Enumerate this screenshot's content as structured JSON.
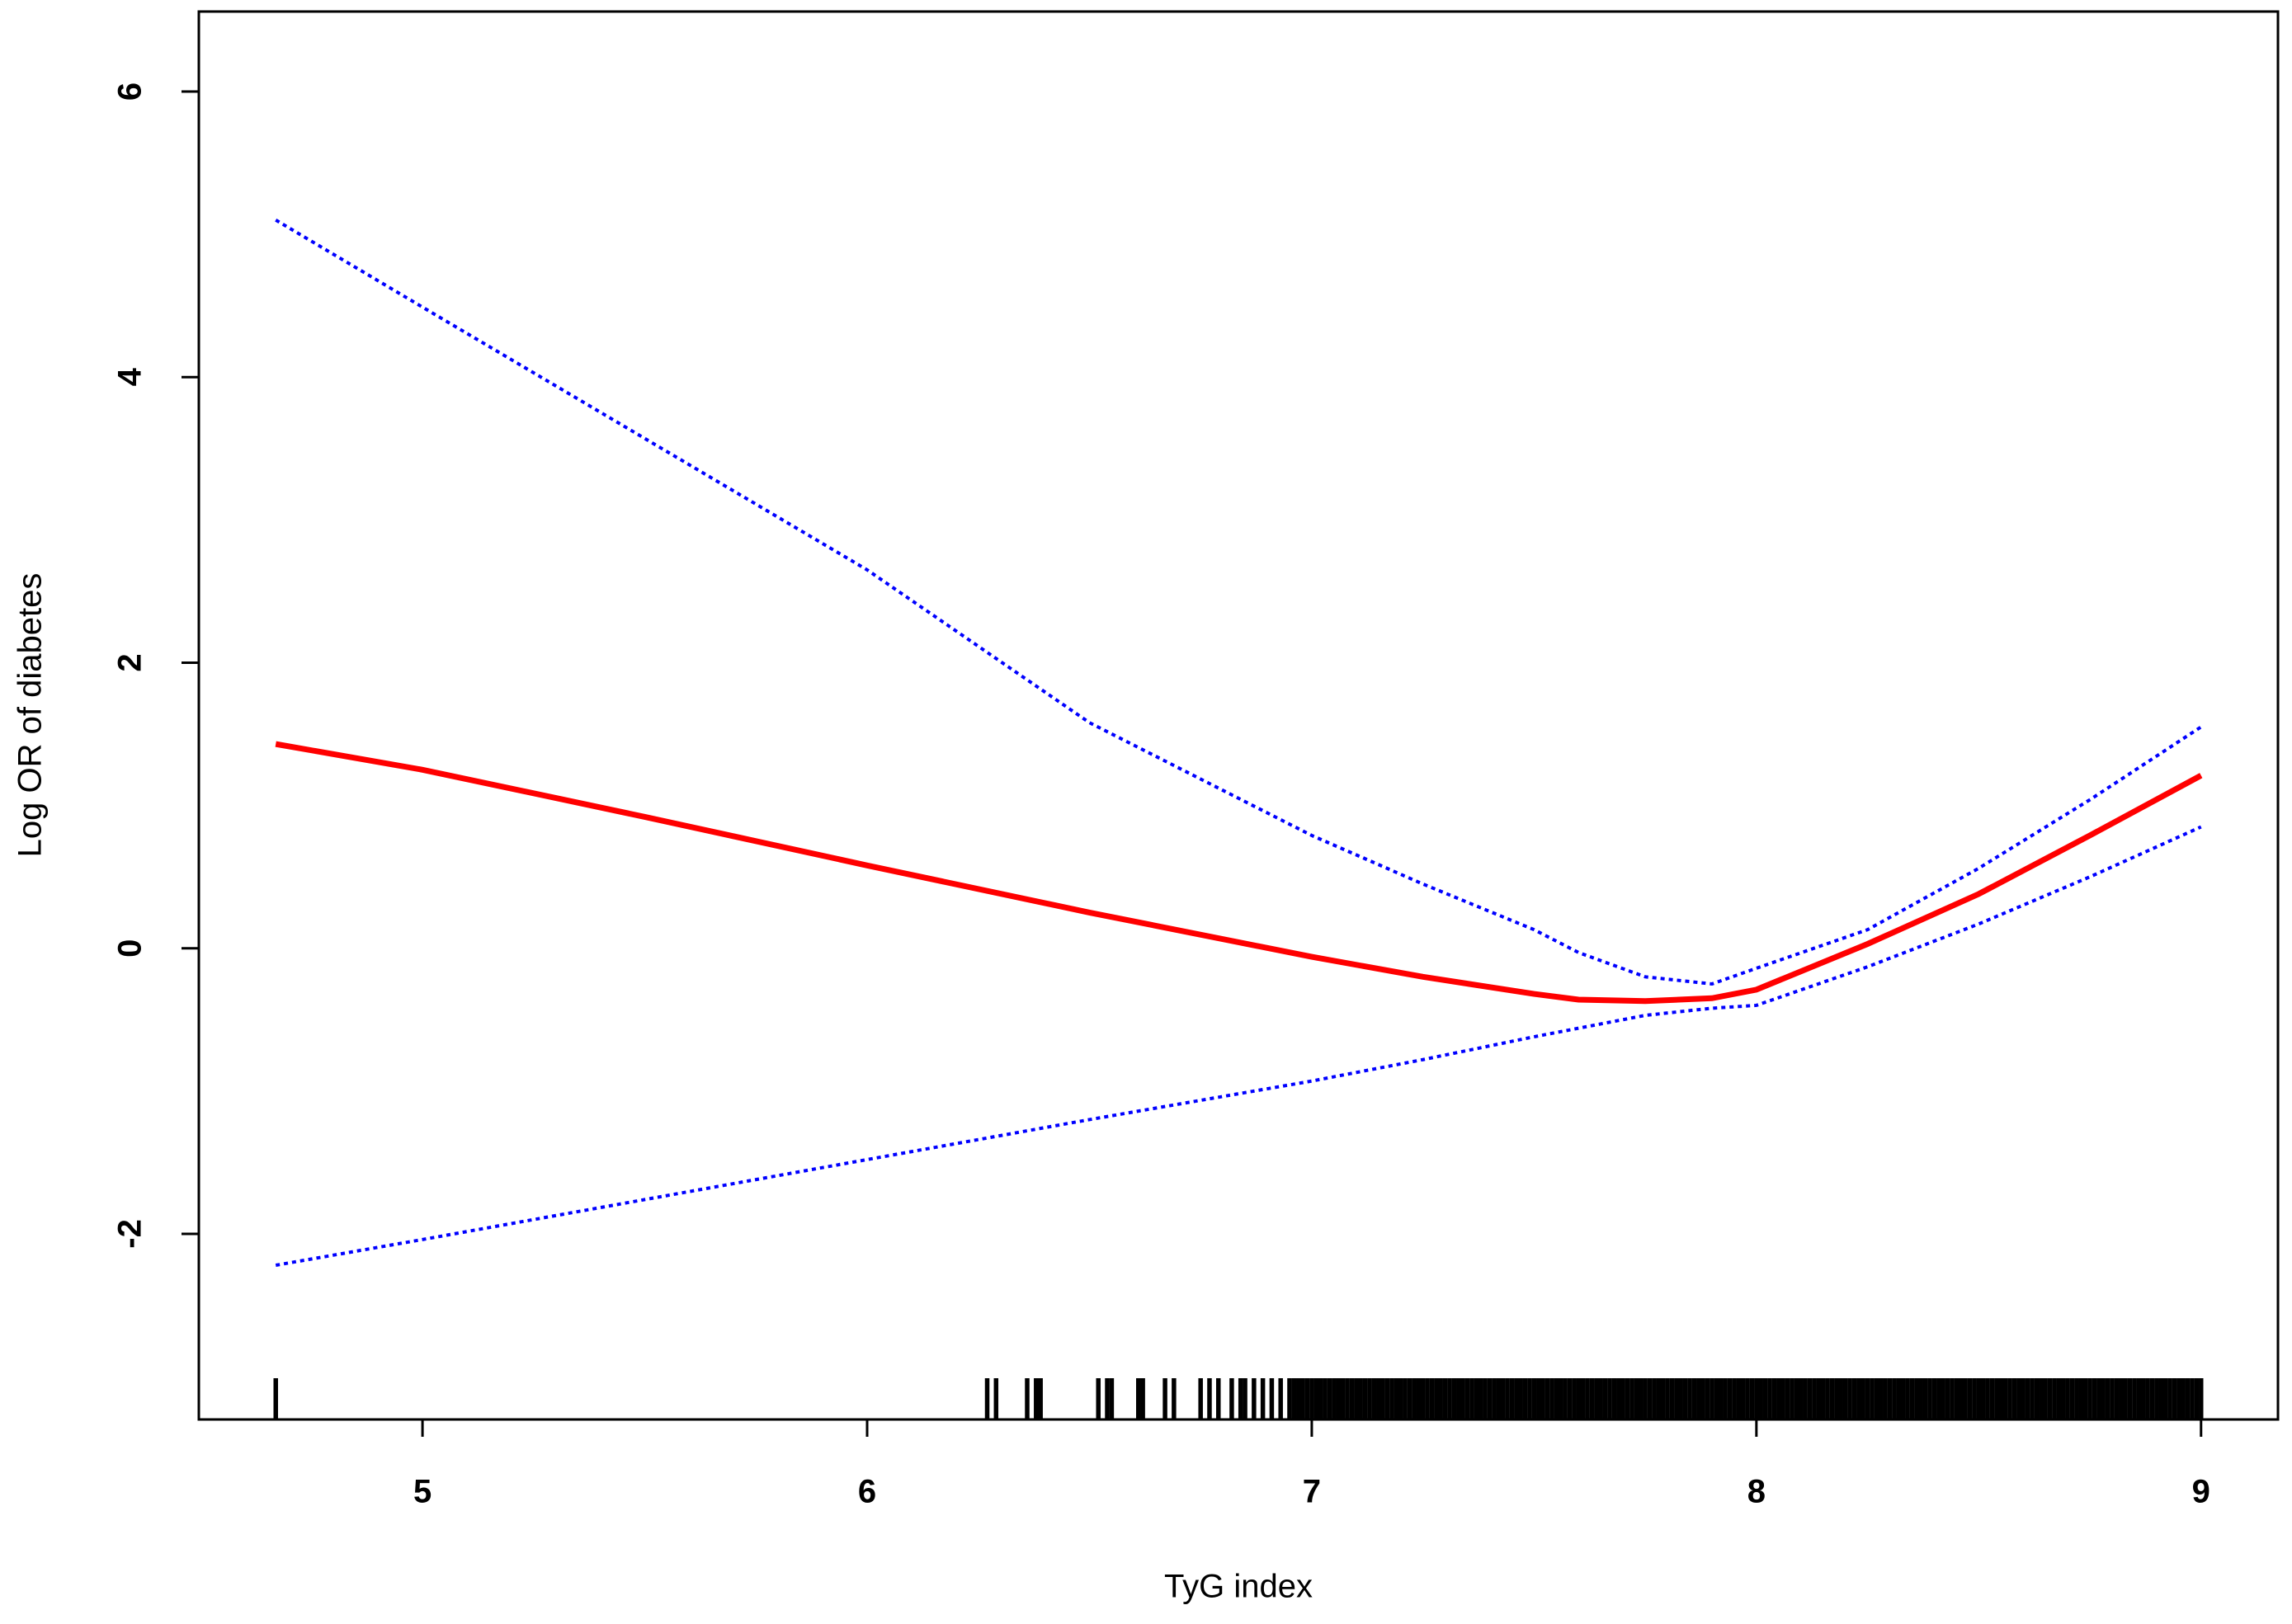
{
  "chart_data": {
    "type": "line",
    "xlabel": "TyG index",
    "ylabel": "Log OR of diabetes",
    "x": [
      4.67,
      5,
      5.5,
      6,
      6.5,
      7,
      7.25,
      7.5,
      7.6,
      7.75,
      7.9,
      8,
      8.25,
      8.5,
      8.75,
      9
    ],
    "series": [
      {
        "color": "#ff0000",
        "line_style": "solid",
        "values": [
          1.43,
          1.25,
          0.92,
          0.58,
          0.25,
          -0.06,
          -0.2,
          -0.32,
          -0.36,
          -0.37,
          -0.35,
          -0.29,
          0.03,
          0.38,
          0.79,
          1.21
        ]
      },
      {
        "color": "#0000ff",
        "line_style": "dotted",
        "values": [
          5.1,
          4.49,
          3.57,
          2.65,
          1.58,
          0.79,
          0.45,
          0.13,
          -0.03,
          -0.2,
          -0.25,
          -0.14,
          0.13,
          0.56,
          1.04,
          1.55
        ]
      },
      {
        "color": "#0000ff",
        "line_style": "dotted",
        "values": [
          -2.22,
          -2.04,
          -1.76,
          -1.48,
          -1.2,
          -0.93,
          -0.78,
          -0.62,
          -0.56,
          -0.47,
          -0.42,
          -0.4,
          -0.13,
          0.17,
          0.5,
          0.85
        ]
      }
    ],
    "rug": [
      4.67,
      6.27,
      6.29,
      6.36,
      6.38,
      6.39,
      6.52,
      6.54,
      6.55,
      6.61,
      6.62,
      6.67,
      6.69,
      6.75,
      6.77,
      6.79,
      6.82,
      6.84,
      6.85,
      6.87,
      6.89,
      6.91,
      6.93,
      6.95,
      6.96,
      6.97,
      6.98,
      6.99,
      7,
      7.01,
      7.02,
      7.03,
      7.04,
      7.05,
      7.06,
      7.07,
      7.08,
      7.09,
      7.1,
      7.11,
      7.12,
      7.13,
      7.14,
      7.15,
      7.16,
      7.17,
      7.18,
      7.19,
      7.2,
      7.21,
      7.22,
      7.23,
      7.24,
      7.25,
      7.26,
      7.27,
      7.28,
      7.29,
      7.3,
      7.31,
      7.32,
      7.33,
      7.34,
      7.35,
      7.36,
      7.37,
      7.38,
      7.39,
      7.4,
      7.41,
      7.42,
      7.43,
      7.44,
      7.45,
      7.46,
      7.47,
      7.48,
      7.49,
      7.5,
      7.51,
      7.52,
      7.53,
      7.54,
      7.55,
      7.56,
      7.57,
      7.58,
      7.59,
      7.6,
      7.61,
      7.62,
      7.63,
      7.64,
      7.65,
      7.66,
      7.67,
      7.68,
      7.69,
      7.7,
      7.71,
      7.72,
      7.73,
      7.74,
      7.75,
      7.76,
      7.77,
      7.78,
      7.79,
      7.8,
      7.81,
      7.82,
      7.83,
      7.84,
      7.85,
      7.86,
      7.87,
      7.88,
      7.89,
      7.9,
      7.91,
      7.92,
      7.93,
      7.94,
      7.95,
      7.96,
      7.97,
      7.98,
      7.99,
      8,
      8.01,
      8.02,
      8.03,
      8.04,
      8.05,
      8.06,
      8.07,
      8.08,
      8.09,
      8.1,
      8.11,
      8.12,
      8.13,
      8.14,
      8.15,
      8.16,
      8.17,
      8.18,
      8.19,
      8.2,
      8.21,
      8.22,
      8.23,
      8.24,
      8.25,
      8.26,
      8.27,
      8.28,
      8.29,
      8.3,
      8.31,
      8.32,
      8.33,
      8.34,
      8.35,
      8.36,
      8.37,
      8.38,
      8.39,
      8.4,
      8.41,
      8.42,
      8.43,
      8.44,
      8.45,
      8.46,
      8.47,
      8.48,
      8.49,
      8.5,
      8.51,
      8.52,
      8.53,
      8.54,
      8.55,
      8.56,
      8.57,
      8.58,
      8.59,
      8.6,
      8.61,
      8.62,
      8.63,
      8.64,
      8.65,
      8.66,
      8.67,
      8.68,
      8.69,
      8.7,
      8.71,
      8.72,
      8.73,
      8.74,
      8.75,
      8.76,
      8.77,
      8.78,
      8.79,
      8.8,
      8.81,
      8.82,
      8.83,
      8.84,
      8.85,
      8.86,
      8.87,
      8.88,
      8.89,
      8.9,
      8.91,
      8.92,
      8.93,
      8.94,
      8.95,
      8.96,
      8.97,
      8.98,
      8.99,
      9
    ],
    "rug_color": "#000000",
    "xlim": [
      4.497,
      9.173
    ],
    "ylim": [
      -3.3,
      6.56
    ],
    "xticks": [
      5,
      6,
      7,
      8,
      9
    ],
    "yticks": [
      -2,
      0,
      2,
      4,
      6
    ],
    "grid": false
  }
}
